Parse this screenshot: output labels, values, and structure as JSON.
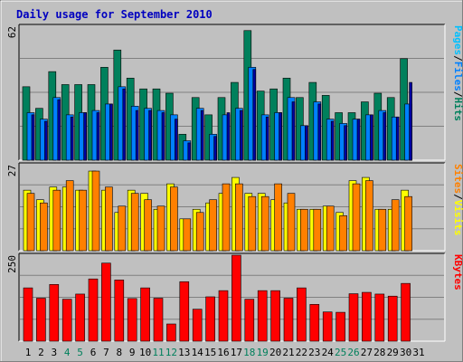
{
  "title": "Daily usage for September 2010",
  "colors": {
    "background": "#c0c0c0",
    "grid": "#808080",
    "hits": "#00805c",
    "files": "#0080ff",
    "files_light": "#00c0ff",
    "pages": "#00c0ff",
    "visits": "#ffff00",
    "sites": "#ff8000",
    "kbytes": "#ff0000",
    "title": "#0000c0",
    "weekend": "#00805c"
  },
  "chart_data": {
    "type": "bar",
    "categories": [
      "1",
      "2",
      "3",
      "4",
      "5",
      "6",
      "7",
      "8",
      "9",
      "10",
      "11",
      "12",
      "13",
      "14",
      "15",
      "16",
      "17",
      "18",
      "19",
      "20",
      "21",
      "22",
      "23",
      "24",
      "25",
      "26",
      "27",
      "28",
      "29",
      "30",
      "31"
    ],
    "weekend_days": [
      "4",
      "5",
      "11",
      "12",
      "18",
      "19",
      "25",
      "26"
    ],
    "panels": [
      {
        "id": "hits_files_pages",
        "max_label": "62",
        "ylim": [
          0,
          62
        ],
        "side_labels": [
          "Pages",
          "/",
          "Files",
          "/",
          "Hits"
        ],
        "side_colors": [
          "#00c0ff",
          "#000000",
          "#0080ff",
          "#000000",
          "#00805c"
        ],
        "series": [
          {
            "name": "Hits",
            "values": [
              34,
              24,
              41,
              35,
              35,
              35,
              43,
              51,
              38,
              33,
              33,
              31,
              12,
              29,
              21,
              29,
              36,
              60,
              32,
              33,
              38,
              29,
              36,
              30,
              22,
              22,
              27,
              31,
              29,
              47
            ]
          },
          {
            "name": "Files",
            "values": [
              22,
              19,
              29,
              21,
              22,
              23,
              26,
              34,
              25,
              24,
              23,
              21,
              9,
              24,
              12,
              21,
              24,
              43,
              21,
              22,
              29,
              16,
              27,
              19,
              17,
              19,
              21,
              23,
              20,
              26
            ]
          },
          {
            "name": "Pages",
            "values": [
              21,
              18,
              28,
              20,
              22,
              22,
              26,
              33,
              23,
              23,
              22,
              19,
              8,
              23,
              11,
              22,
              23,
              42,
              20,
              22,
              27,
              16,
              26,
              18,
              16,
              19,
              21,
              22,
              20,
              36
            ]
          }
        ]
      },
      {
        "id": "visits_sites",
        "max_label": "27",
        "ylim": [
          0,
          27
        ],
        "side_labels": [
          "Sites",
          "/",
          "Visits"
        ],
        "side_colors": [
          "#ff8000",
          "#000000",
          "#ffff00"
        ],
        "series": [
          {
            "name": "Visits",
            "values": [
              19,
              16,
              20,
              20,
              19,
              25,
              19,
              12,
              19,
              18,
              13,
              21,
              10,
              13,
              15,
              18,
              23,
              18,
              18,
              16,
              15,
              13,
              13,
              14,
              12,
              22,
              23,
              13,
              13,
              19
            ]
          },
          {
            "name": "Sites",
            "values": [
              18,
              15,
              19,
              22,
              19,
              25,
              20,
              14,
              18,
              16,
              14,
              20,
              10,
              12,
              16,
              21,
              21,
              17,
              17,
              21,
              18,
              13,
              13,
              14,
              11,
              21,
              22,
              13,
              16,
              17
            ]
          }
        ]
      },
      {
        "id": "kbytes",
        "max_label": "250",
        "ylim": [
          0,
          250
        ],
        "side_labels": [
          "KBytes"
        ],
        "side_colors": [
          "#ff0000"
        ],
        "series": [
          {
            "name": "KBytes",
            "values": [
              155,
              125,
              165,
              122,
              137,
              181,
              227,
              178,
              124,
              155,
              125,
              50,
              173,
              93,
              129,
              147,
              250,
              122,
              147,
              147,
              125,
              155,
              107,
              85,
              84,
              138,
              142,
              137,
              131,
              168
            ]
          }
        ]
      }
    ]
  }
}
